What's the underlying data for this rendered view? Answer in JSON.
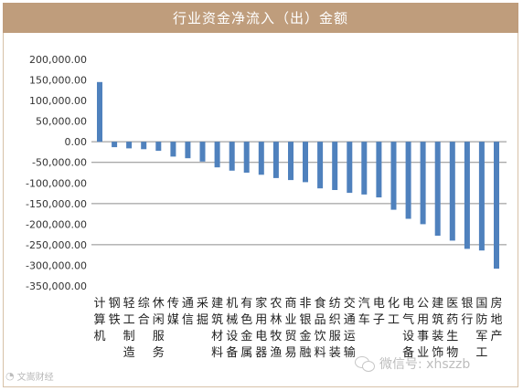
{
  "header": {
    "title": "行业资金净流入（出）金额"
  },
  "watermarks": {
    "left_text": "文嵩财经",
    "right_text": "微信号: xhszzb"
  },
  "colors": {
    "title_bg": "#bf9d7c",
    "bar": "#4f81bd",
    "grid": "#8c8c8c",
    "frame": "#d7c1a8"
  },
  "chart_data": {
    "type": "bar",
    "title": "行业资金净流入（出）金额",
    "xlabel": "",
    "ylabel": "",
    "ylim": [
      -350000,
      200000
    ],
    "yticks": [
      200000,
      150000,
      100000,
      50000,
      0,
      -50000,
      -100000,
      -150000,
      -200000,
      -250000,
      -300000,
      -350000
    ],
    "ytick_labels": [
      "200,000.00",
      "150,000.00",
      "100,000.00",
      "50,000.00",
      "0.00",
      "-50,000.00",
      "-100,000.00",
      "-150,000.00",
      "-200,000.00",
      "-250,000.00",
      "-300,000.00",
      "-350,000.00"
    ],
    "gridlines_at": [
      0,
      -50000,
      -150000,
      -250000
    ],
    "categories": [
      "计算机",
      "钢铁",
      "轻工制造",
      "综合",
      "休闲服务",
      "传媒",
      "通信",
      "采掘",
      "建筑材料",
      "机械设备",
      "有色金属",
      "家用电器",
      "农林牧渔",
      "商业贸易",
      "非银金融",
      "食品饮料",
      "纺织服装",
      "交通运输",
      "汽车",
      "电子",
      "化工",
      "电气设备",
      "公用事业",
      "建筑装饰",
      "医药生物",
      "银行",
      "国防军工",
      "房地产"
    ],
    "values": [
      145000,
      -13000,
      -16000,
      -18000,
      -22000,
      -36000,
      -40000,
      -48000,
      -62000,
      -70000,
      -75000,
      -80000,
      -88000,
      -93000,
      -98000,
      -113000,
      -117000,
      -124000,
      -128000,
      -135000,
      -165000,
      -187000,
      -200000,
      -228000,
      -240000,
      -260000,
      -264000,
      -308000
    ]
  }
}
